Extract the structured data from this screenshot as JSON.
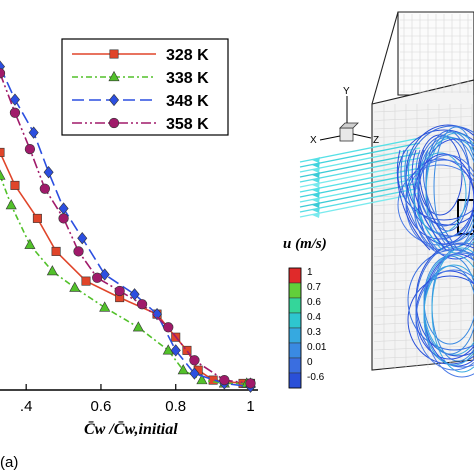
{
  "chart_data": [
    {
      "type": "line",
      "xlabel": "C̄w /C̄w,initial",
      "xlim": [
        0.33,
        1.02
      ],
      "ylim": [
        0,
        1
      ],
      "x_tick_labels": [
        ".4",
        "0.6",
        "0.8",
        "1"
      ],
      "x_ticks": [
        0.4,
        0.6,
        0.8,
        1.0
      ],
      "grid": false,
      "legend_placement": "top-right",
      "series": [
        {
          "name": "328 K",
          "color": "#e0452a",
          "marker": "square",
          "dash": "solid",
          "x": [
            0.33,
            0.37,
            0.43,
            0.48,
            0.56,
            0.65,
            0.75,
            0.8,
            0.83,
            0.86,
            0.9,
            0.98,
            1.0
          ],
          "y": [
            0.72,
            0.62,
            0.52,
            0.42,
            0.33,
            0.28,
            0.23,
            0.16,
            0.12,
            0.06,
            0.03,
            0.02,
            0.02
          ]
        },
        {
          "name": "338 K",
          "color": "#52c12a",
          "marker": "triangle",
          "dash": "6,3,2,3",
          "x": [
            0.33,
            0.36,
            0.41,
            0.47,
            0.53,
            0.61,
            0.7,
            0.78,
            0.82,
            0.87,
            0.93,
            0.99,
            1.0
          ],
          "y": [
            0.65,
            0.56,
            0.44,
            0.36,
            0.31,
            0.25,
            0.19,
            0.12,
            0.06,
            0.03,
            0.02,
            0.02,
            0.02
          ]
        },
        {
          "name": "348 K",
          "color": "#2c4fe0",
          "marker": "diamond",
          "dash": "12,5",
          "x": [
            0.33,
            0.37,
            0.42,
            0.46,
            0.5,
            0.55,
            0.61,
            0.69,
            0.75,
            0.8,
            0.85,
            0.93,
            1.0
          ],
          "y": [
            0.98,
            0.88,
            0.78,
            0.66,
            0.55,
            0.46,
            0.35,
            0.29,
            0.23,
            0.12,
            0.05,
            0.02,
            0.01
          ]
        },
        {
          "name": "358 K",
          "color": "#a01a6a",
          "marker": "circle",
          "dash": "10,3,2,3,2,3",
          "x": [
            0.33,
            0.37,
            0.41,
            0.45,
            0.5,
            0.54,
            0.59,
            0.65,
            0.71,
            0.78,
            0.85,
            0.93,
            1.0
          ],
          "y": [
            0.96,
            0.84,
            0.73,
            0.61,
            0.52,
            0.42,
            0.34,
            0.3,
            0.26,
            0.19,
            0.09,
            0.03,
            0.02
          ]
        }
      ]
    },
    {
      "type": "heatmap",
      "title": "u (m/s)",
      "colorbar_labels": [
        "1",
        "0.7",
        "0.6",
        "0.4",
        "0.3",
        "0.01",
        "0",
        "-0.6"
      ],
      "colorbar_colors": [
        "#e02a2a",
        "#62cf3a",
        "#34d69a",
        "#2ec6cf",
        "#36a9e0",
        "#3a8ae2",
        "#3a6ee0",
        "#2a50d8"
      ],
      "axis_labels": [
        "Y",
        "X",
        "Z"
      ]
    }
  ],
  "panel_label": "(a)"
}
